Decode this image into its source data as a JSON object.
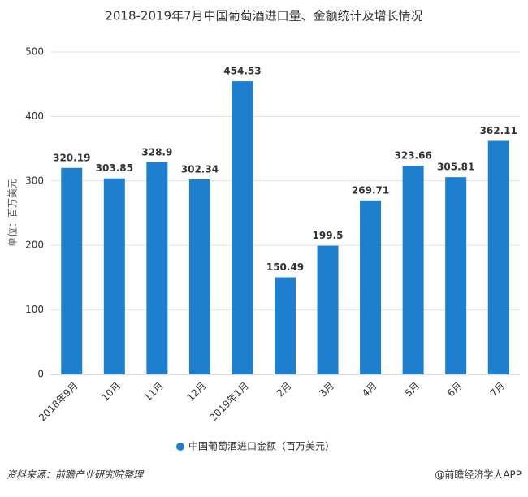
{
  "chart_data": {
    "type": "bar",
    "title": "2018-2019年7月中国葡萄酒进口量、金额统计及增长情况",
    "y_label": "单位：百万美元",
    "categories": [
      "2018年9月",
      "10月",
      "11月",
      "12月",
      "2019年1月",
      "2月",
      "3月",
      "4月",
      "5月",
      "6月",
      "7月"
    ],
    "series": [
      {
        "name": "中国葡萄酒进口金额（百万美元）",
        "color": "#1f7fcf",
        "values": [
          320.19,
          303.85,
          328.9,
          302.34,
          454.53,
          150.49,
          199.5,
          269.71,
          323.66,
          305.81,
          362.11
        ]
      }
    ],
    "ylim": [
      0,
      500
    ],
    "yticks": [
      0,
      100,
      200,
      300,
      400,
      500
    ],
    "grid": true,
    "legend": "bottom"
  },
  "source": "资料来源：前瞻产业研究院整理",
  "credit": "@前瞻经济学人APP"
}
